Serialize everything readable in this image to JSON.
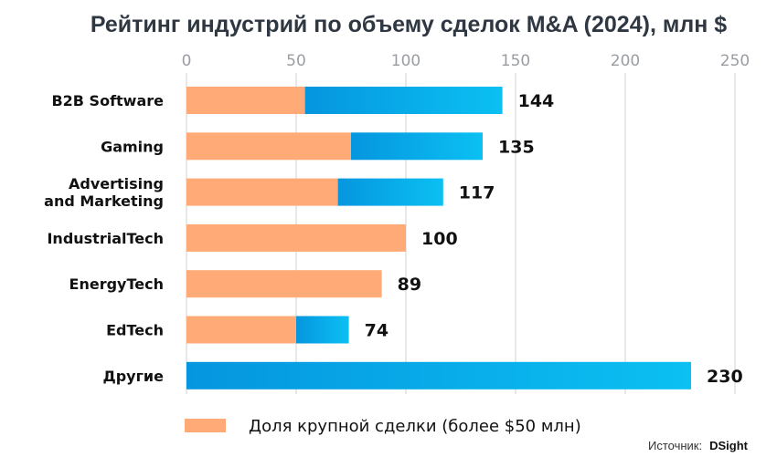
{
  "chart_data": {
    "type": "bar",
    "orientation": "horizontal",
    "stacked": true,
    "title": "Рейтинг индустрий по объему сделок M&A (2024), млн $",
    "xlim": [
      0,
      250
    ],
    "xticks": [
      "0",
      "50",
      "100",
      "150",
      "200",
      "250"
    ],
    "xaxis_position": "top",
    "grid": true,
    "categories": [
      [
        "B2B Software"
      ],
      [
        "Gaming"
      ],
      [
        "Advertising",
        "and Marketing"
      ],
      [
        "IndustrialTech"
      ],
      [
        "EnergyTech"
      ],
      [
        "EdTech"
      ],
      [
        "Другие"
      ]
    ],
    "totals": [
      144,
      135,
      117,
      100,
      89,
      74,
      230
    ],
    "total_labels": [
      "144",
      "135",
      "117",
      "100",
      "89",
      "74",
      "230"
    ],
    "series": [
      {
        "name": "Доля крупной сделки (более $50 млн)",
        "values": [
          54,
          75,
          69,
          100,
          89,
          50,
          0
        ],
        "color": "#FFAA77"
      },
      {
        "values": [
          90,
          60,
          48,
          0,
          0,
          24,
          230
        ],
        "color": "#0AB0EC"
      }
    ],
    "legend": {
      "position": "bottom",
      "label": "Доля крупной сделки (более $50 млн)"
    }
  },
  "source": {
    "label": "Источник:",
    "name": "DSight"
  },
  "colors": {
    "orange": "#FFAA77",
    "blue_start": "#0596DF",
    "blue_end": "#0BC0F2",
    "grid": "#d9d9d9",
    "title": "#2f3742"
  }
}
